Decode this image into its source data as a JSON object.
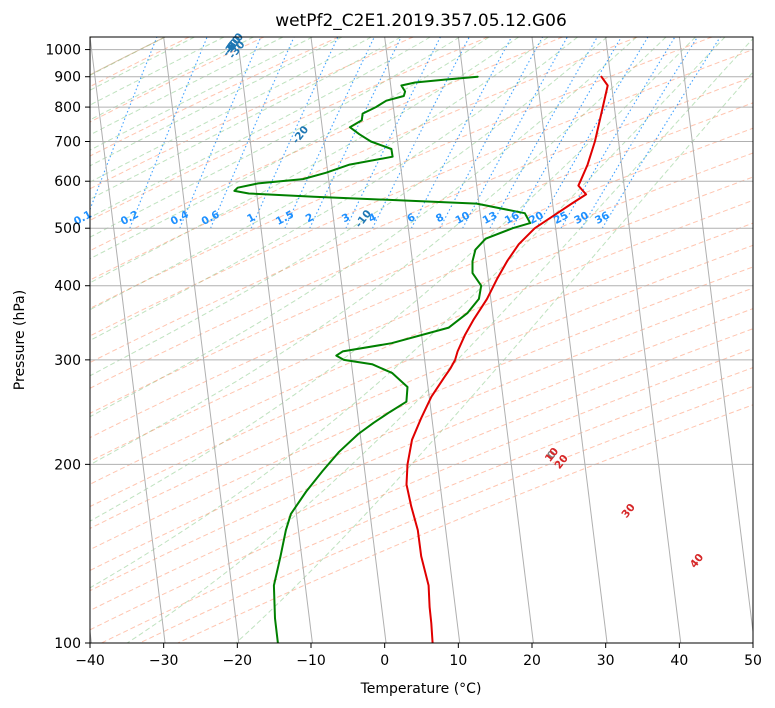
{
  "chart_data": {
    "type": "line",
    "title": "wetPf2_C2E1.2019.357.05.12.G06",
    "xlabel": "Temperature (°C)",
    "ylabel": "Pressure (hPa)",
    "xlim": [
      -40,
      50
    ],
    "ylim": [
      1050,
      100
    ],
    "y_scale": "log",
    "x_ticks": [
      -40,
      -30,
      -20,
      -10,
      0,
      10,
      20,
      30,
      40,
      50
    ],
    "y_ticks": [
      100,
      200,
      300,
      400,
      500,
      600,
      700,
      800,
      900,
      1000
    ],
    "grid": true,
    "colors": {
      "temperature": "#e00000",
      "dewpoint": "#008000",
      "dry_adiabat_label": "#1f77b4",
      "mixing_ratio_label": "#1e90ff",
      "moist_adiabat_label": "#d62728",
      "zero_label": "#808080"
    },
    "dry_adiabat_labels": [
      "-100",
      "-90",
      "-80",
      "-70",
      "-60",
      "-50",
      "-40",
      "-30",
      "-20",
      "-10"
    ],
    "mixing_ratio_labels": [
      "0.1",
      "0.2",
      "0.4",
      "0.6",
      "1",
      "1.5",
      "2",
      "3",
      "4",
      "6",
      "8",
      "10",
      "13",
      "16",
      "20",
      "25",
      "30",
      "36"
    ],
    "moist_adiabat_labels": [
      "0",
      "10",
      "20",
      "30",
      "40"
    ],
    "series": [
      {
        "key": "temperature",
        "pressure": [
          900,
          870,
          800,
          700,
          640,
          600,
          590,
          580,
          570,
          550,
          520,
          500,
          470,
          440,
          410,
          380,
          350,
          330,
          310,
          300,
          290,
          280,
          260,
          240,
          220,
          200,
          185,
          170,
          155,
          140,
          125,
          115,
          108,
          100
        ],
        "temperature": [
          19.9,
          20.9,
          20.6,
          20.1,
          19.5,
          18.8,
          18.6,
          19.2,
          19.8,
          18.0,
          15.3,
          13.4,
          11.5,
          10.2,
          9.1,
          8.1,
          6.6,
          5.7,
          5.0,
          4.8,
          4.3,
          3.6,
          2.2,
          1.2,
          0.3,
          0.1,
          0.3,
          1.3,
          2.6,
          3.5,
          5.0,
          5.5,
          6.0,
          6.5
        ]
      },
      {
        "key": "dewpoint",
        "pressure": [
          900,
          890,
          880,
          870,
          850,
          835,
          820,
          800,
          780,
          760,
          740,
          720,
          700,
          680,
          660,
          640,
          620,
          605,
          595,
          585,
          578,
          572,
          565,
          550,
          530,
          510,
          500,
          480,
          460,
          440,
          420,
          400,
          380,
          360,
          340,
          320,
          310,
          305,
          300,
          295,
          285,
          270,
          255,
          245,
          235,
          225,
          210,
          195,
          180,
          165,
          155,
          140,
          125,
          110,
          100
        ],
        "temperature": [
          3.1,
          -1.3,
          -5.3,
          -7.1,
          -6.5,
          -6.6,
          -8.9,
          -10.2,
          -11.9,
          -11.9,
          -13.4,
          -12.0,
          -10.3,
          -7.4,
          -7.1,
          -12.8,
          -15.9,
          -18.9,
          -24.9,
          -27.6,
          -28.0,
          -26.0,
          -17.1,
          5.1,
          11.8,
          12.7,
          10.4,
          6.9,
          5.7,
          5.5,
          5.7,
          7.1,
          7.0,
          5.7,
          3.4,
          -4.1,
          -10.6,
          -11.4,
          -10.3,
          -6.4,
          -3.5,
          -1.2,
          -1.1,
          -3.2,
          -5.2,
          -7.1,
          -9.4,
          -11.3,
          -13.2,
          -14.9,
          -15.3,
          -15.6,
          -16.0,
          -15.3,
          -14.5
        ]
      }
    ]
  }
}
